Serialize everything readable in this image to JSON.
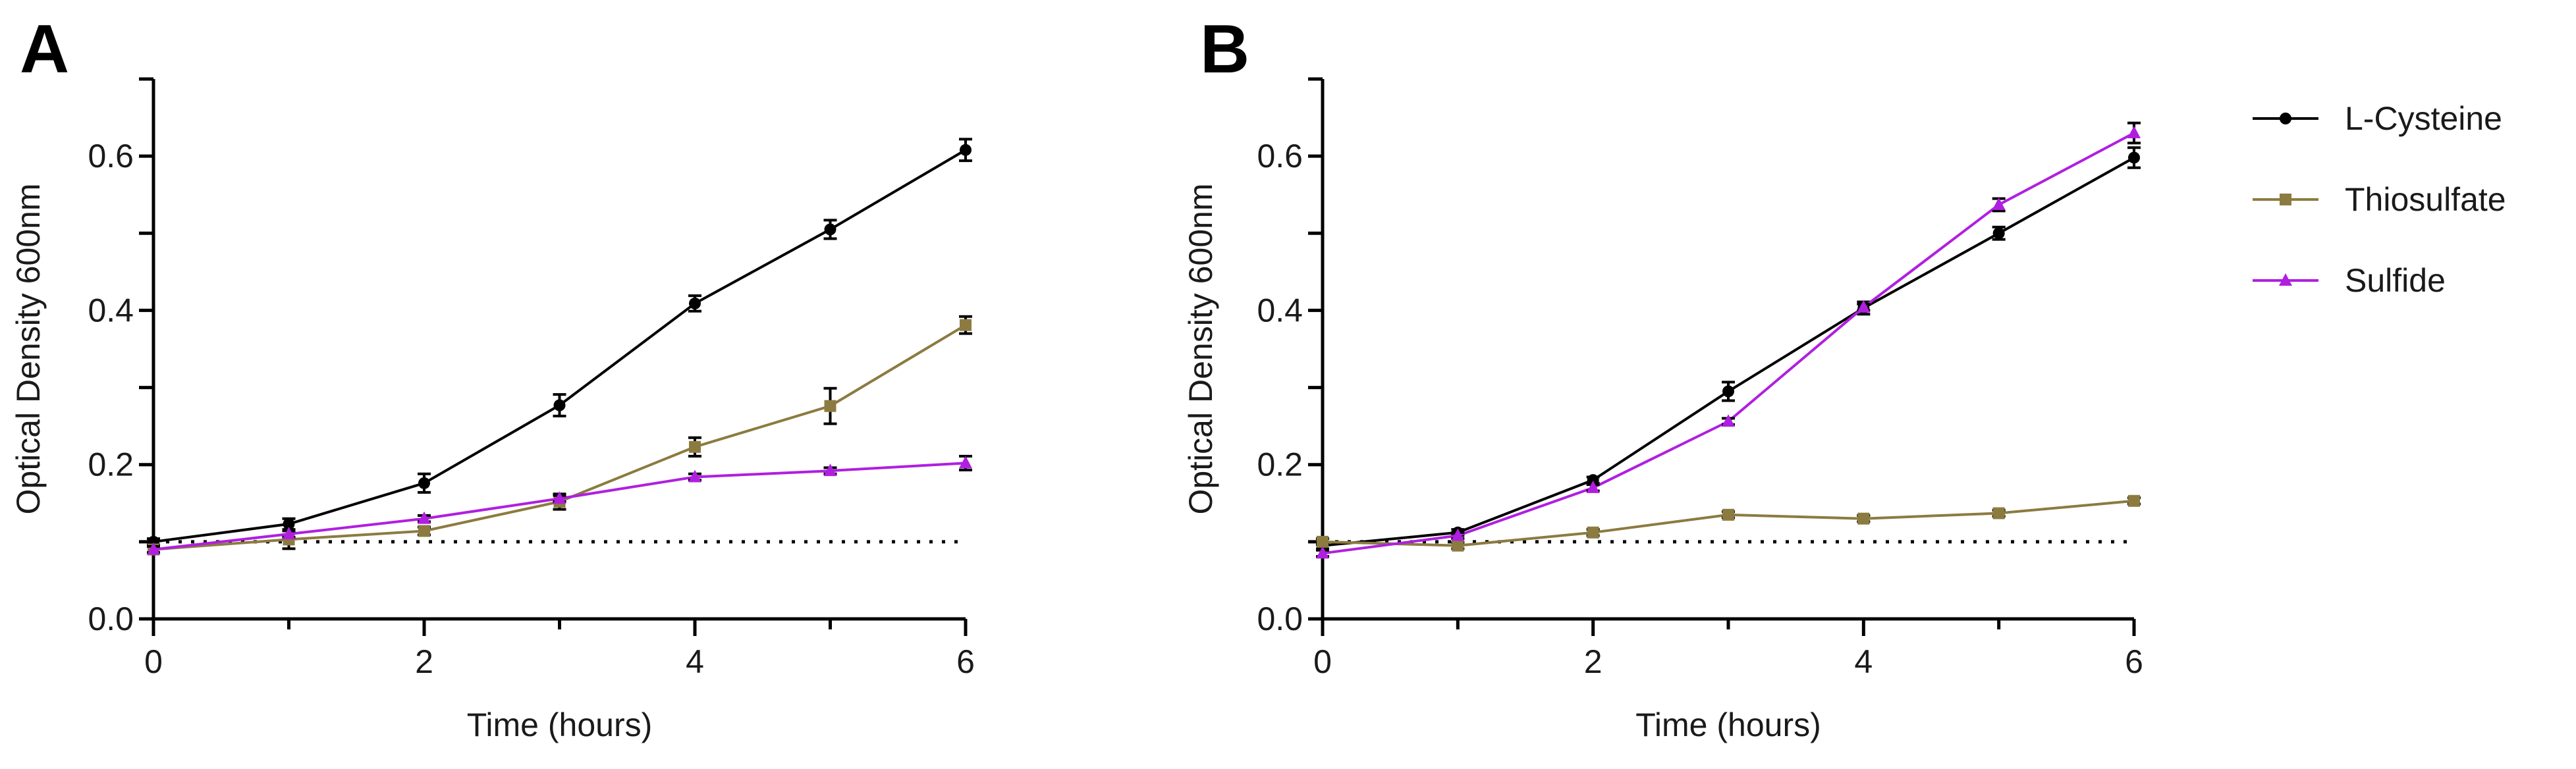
{
  "chart_data": [
    {
      "type": "line",
      "panel_label": "A",
      "title": "",
      "xlabel": "Time (hours)",
      "ylabel": "Optical Density 600nm",
      "xlim": [
        0,
        6
      ],
      "ylim": [
        0,
        0.7
      ],
      "xticks": [
        "0",
        "2",
        "4",
        "6"
      ],
      "yticks": [
        "0.0",
        "0.2",
        "0.4",
        "0.6"
      ],
      "reference_line": {
        "style": "dotted",
        "y": 0.1
      },
      "grid": false,
      "x": [
        0,
        1,
        2,
        3,
        4,
        5,
        6
      ],
      "series": [
        {
          "name": "L-Cysteine",
          "marker": "circle",
          "color": "#000000",
          "values": [
            0.1,
            0.123,
            0.176,
            0.277,
            0.409,
            0.505,
            0.608
          ],
          "errors": [
            0.004,
            0.007,
            0.012,
            0.014,
            0.01,
            0.012,
            0.014
          ]
        },
        {
          "name": "Thiosulfate",
          "marker": "square",
          "color": "#8c7b40",
          "values": [
            0.09,
            0.103,
            0.114,
            0.152,
            0.223,
            0.276,
            0.381
          ],
          "errors": [
            0.004,
            0.012,
            0.005,
            0.01,
            0.012,
            0.023,
            0.011
          ]
        },
        {
          "name": "Sulfide",
          "marker": "triangle",
          "color": "#b01fe0",
          "values": [
            0.09,
            0.11,
            0.13,
            0.156,
            0.184,
            0.192,
            0.202
          ],
          "errors": [
            0.004,
            0.004,
            0.004,
            0.004,
            0.004,
            0.004,
            0.009
          ]
        }
      ]
    },
    {
      "type": "line",
      "panel_label": "B",
      "title": "",
      "xlabel": "Time (hours)",
      "ylabel": "Optical Density 600nm",
      "xlim": [
        0,
        6
      ],
      "ylim": [
        0,
        0.7
      ],
      "xticks": [
        "0",
        "2",
        "4",
        "6"
      ],
      "yticks": [
        "0.0",
        "0.2",
        "0.4",
        "0.6"
      ],
      "reference_line": {
        "style": "dotted",
        "y": 0.1
      },
      "grid": false,
      "x": [
        0,
        1,
        2,
        3,
        4,
        5,
        6
      ],
      "series": [
        {
          "name": "L-Cysteine",
          "marker": "circle",
          "color": "#000000",
          "values": [
            0.095,
            0.112,
            0.18,
            0.295,
            0.403,
            0.5,
            0.598
          ],
          "errors": [
            0.004,
            0.004,
            0.004,
            0.012,
            0.008,
            0.008,
            0.013
          ]
        },
        {
          "name": "Thiosulfate",
          "marker": "square",
          "color": "#8c7b40",
          "values": [
            0.1,
            0.095,
            0.112,
            0.135,
            0.13,
            0.137,
            0.153
          ],
          "errors": [
            0.004,
            0.004,
            0.004,
            0.004,
            0.004,
            0.004,
            0.004
          ]
        },
        {
          "name": "Sulfide",
          "marker": "triangle",
          "color": "#b01fe0",
          "values": [
            0.085,
            0.108,
            0.17,
            0.256,
            0.404,
            0.537,
            0.63
          ],
          "errors": [
            0.004,
            0.004,
            0.004,
            0.004,
            0.004,
            0.008,
            0.013
          ]
        }
      ]
    }
  ],
  "legend": {
    "placement": "right",
    "items": [
      {
        "label": "L-Cysteine",
        "marker": "circle",
        "color": "#000000"
      },
      {
        "label": "Thiosulfate",
        "marker": "square",
        "color": "#8c7b40"
      },
      {
        "label": "Sulfide",
        "marker": "triangle",
        "color": "#b01fe0"
      }
    ]
  }
}
